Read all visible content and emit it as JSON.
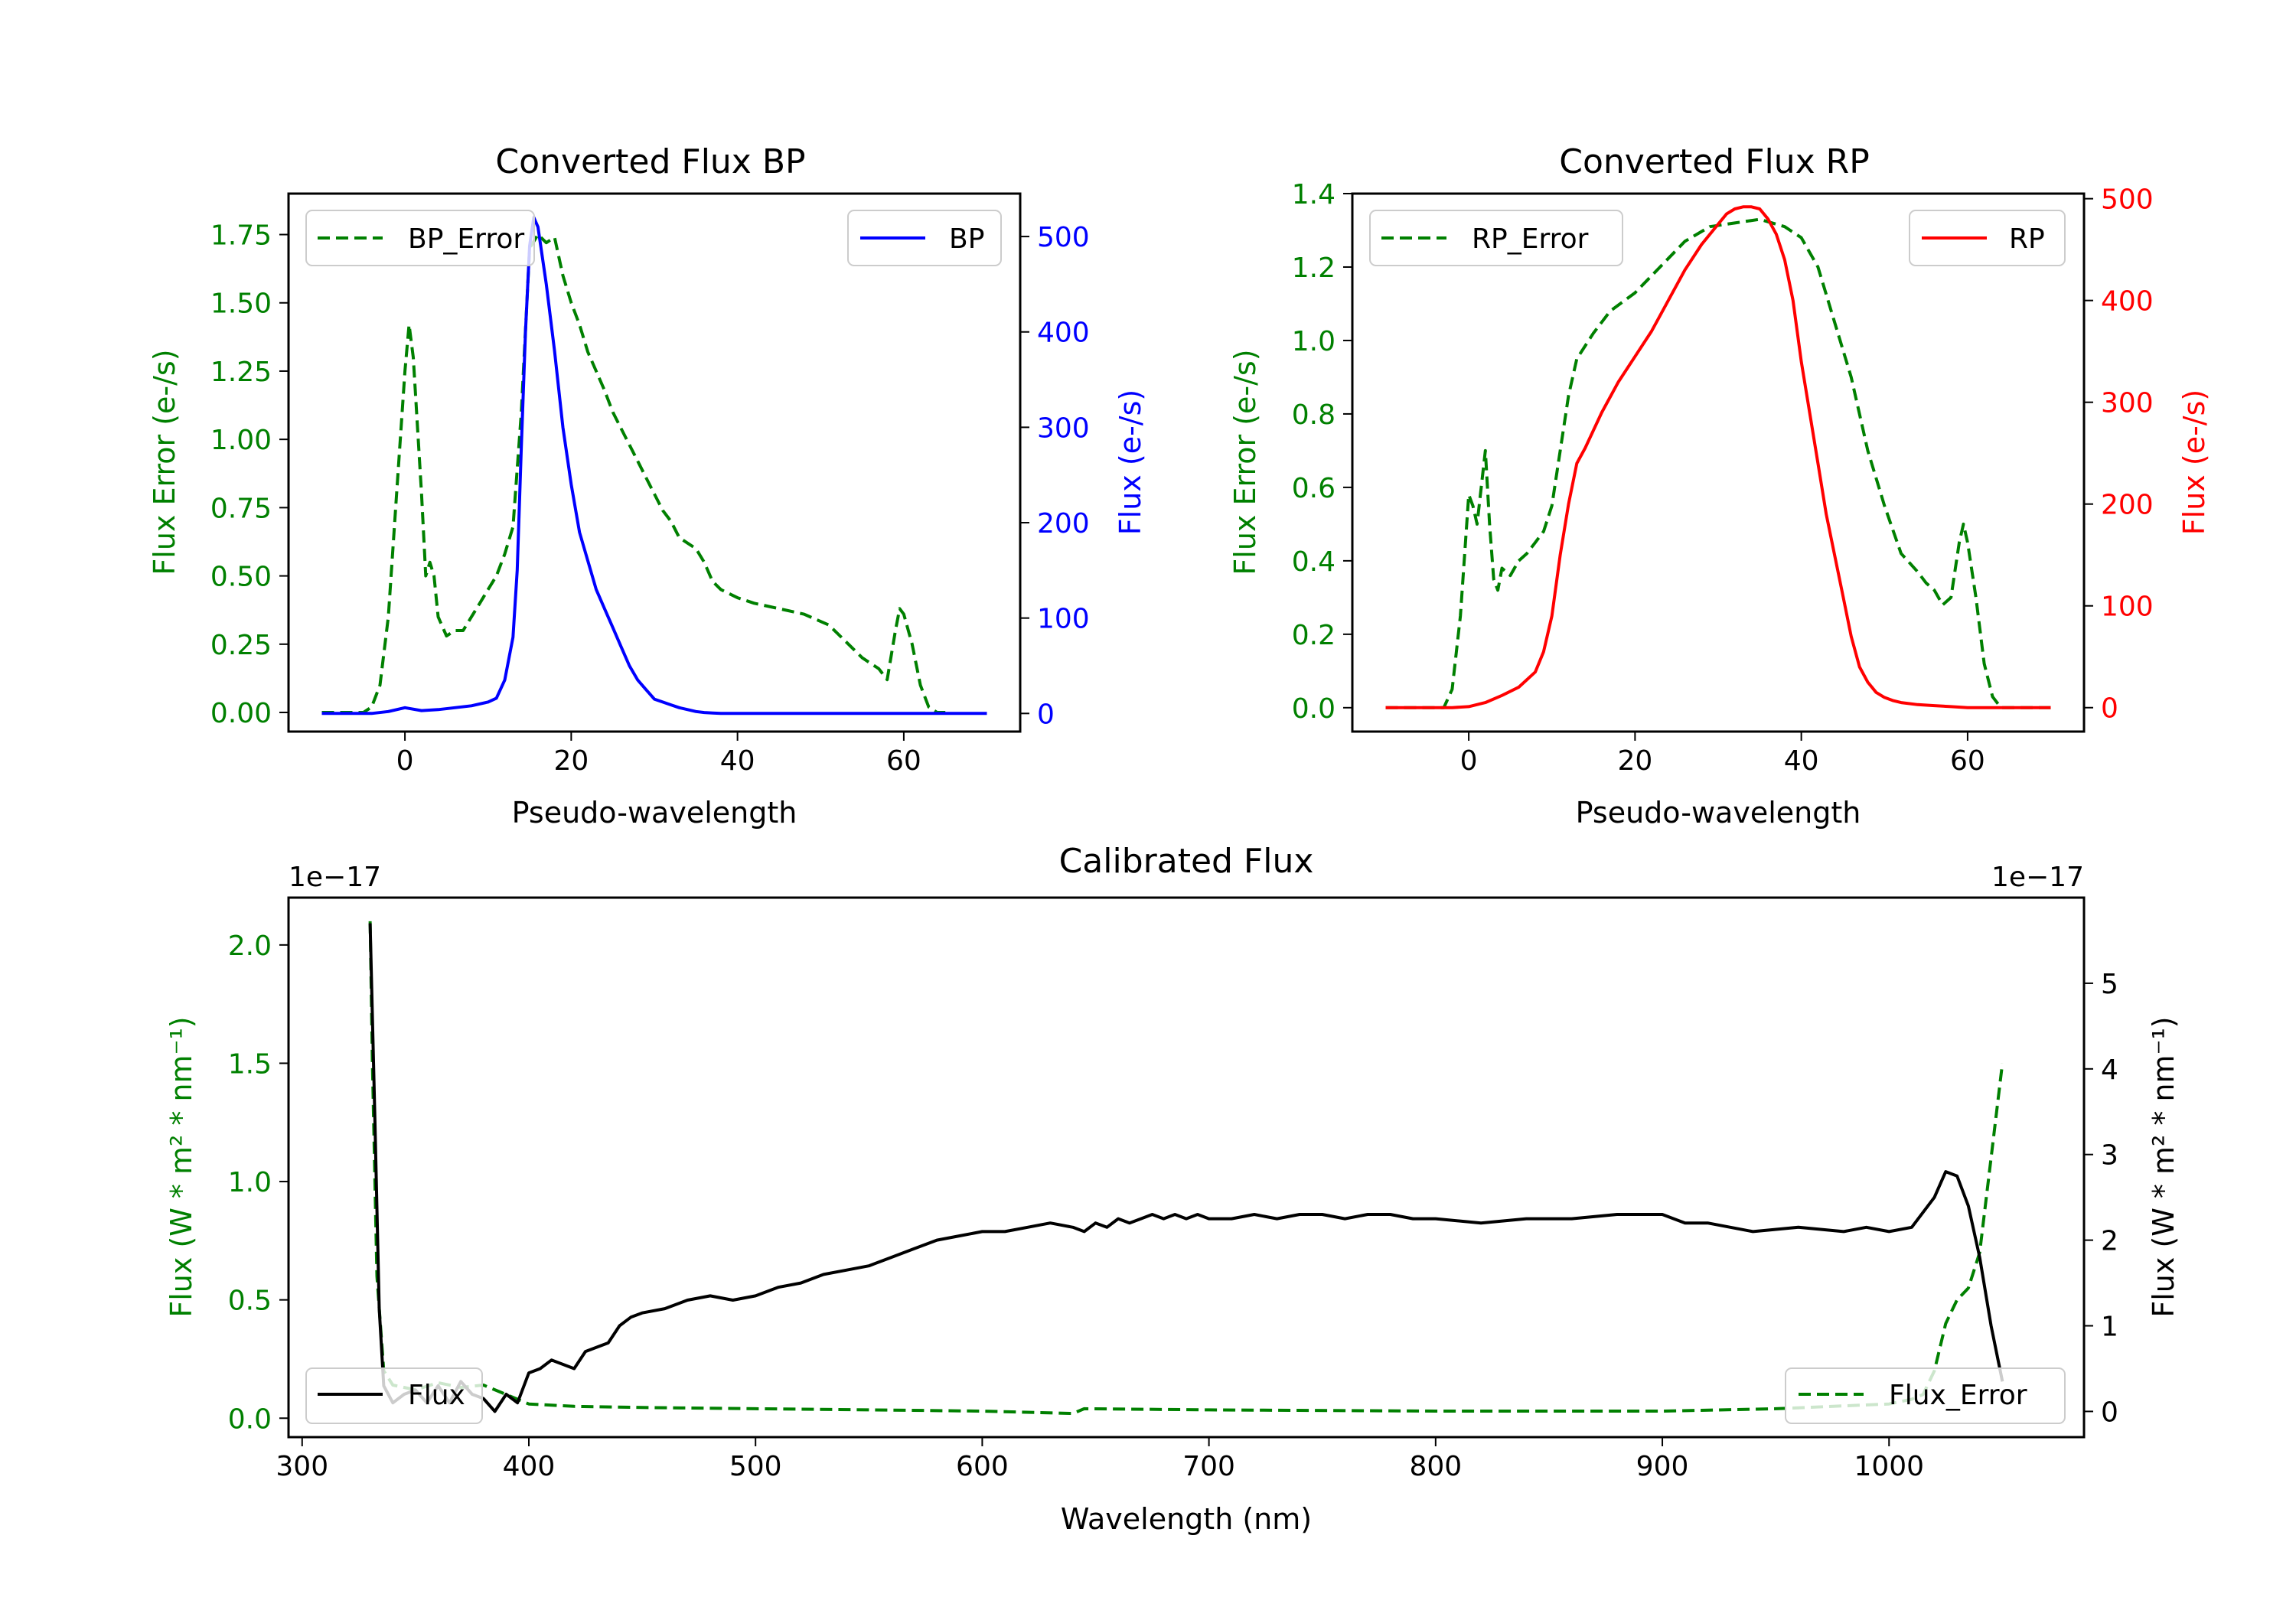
{
  "chart_data": [
    {
      "type": "line",
      "title": "Converted Flux BP",
      "xlabel": "Pseudo-wavelength",
      "ylabel": "Flux Error (e-/s)",
      "ylabel_right": "Flux (e-/s)",
      "xlim": [
        -14,
        74
      ],
      "ylim": [
        -0.07,
        1.9
      ],
      "ylim_right": [
        -19,
        545
      ],
      "xticks": [
        0,
        20,
        40,
        60
      ],
      "yticks": [
        0.0,
        0.25,
        0.5,
        0.75,
        1.0,
        1.25,
        1.5,
        1.75
      ],
      "ytick_labels": [
        "0.00",
        "0.25",
        "0.50",
        "0.75",
        "1.00",
        "1.25",
        "1.50",
        "1.75"
      ],
      "yticks_right": [
        0,
        100,
        200,
        300,
        400,
        500
      ],
      "ytick_labels_right": [
        "0",
        "100",
        "200",
        "300",
        "400",
        "500"
      ],
      "colors": {
        "left_axis": "#008000",
        "right_axis": "#0000ff"
      },
      "legend": [
        {
          "name": "BP_Error",
          "position": "upper-left",
          "style": "dashed",
          "color": "#008000"
        },
        {
          "name": "BP",
          "position": "upper-right",
          "style": "solid",
          "color": "#0000ff"
        }
      ],
      "series": [
        {
          "name": "BP_Error",
          "axis": "left",
          "color": "#008000",
          "style": "dashed",
          "x": [
            -10,
            -5,
            -4,
            -3,
            -2,
            -1,
            0,
            0.5,
            1,
            2,
            2.5,
            3,
            3.5,
            4,
            5,
            6,
            7,
            8,
            9,
            10,
            11,
            12,
            13,
            14,
            15,
            16,
            17,
            18,
            19,
            20,
            21,
            22,
            23,
            24,
            25,
            26,
            27,
            28,
            29,
            30,
            31,
            32,
            33,
            34,
            35,
            36,
            37,
            38,
            40,
            42,
            45,
            48,
            51,
            53,
            55,
            57,
            58,
            59,
            59.5,
            60,
            61,
            62,
            63,
            64,
            65
          ],
          "y": [
            0,
            0,
            0.02,
            0.1,
            0.35,
            0.8,
            1.25,
            1.42,
            1.3,
            0.8,
            0.5,
            0.55,
            0.5,
            0.35,
            0.28,
            0.3,
            0.3,
            0.35,
            0.4,
            0.45,
            0.5,
            0.58,
            0.68,
            1.1,
            1.7,
            1.75,
            1.72,
            1.74,
            1.6,
            1.5,
            1.42,
            1.32,
            1.25,
            1.18,
            1.1,
            1.04,
            0.98,
            0.92,
            0.86,
            0.8,
            0.74,
            0.7,
            0.64,
            0.62,
            0.6,
            0.55,
            0.48,
            0.45,
            0.42,
            0.4,
            0.38,
            0.36,
            0.32,
            0.26,
            0.2,
            0.16,
            0.12,
            0.3,
            0.38,
            0.36,
            0.25,
            0.1,
            0.02,
            0,
            0
          ]
        },
        {
          "name": "BP",
          "axis": "right",
          "color": "#0000ff",
          "style": "solid",
          "x": [
            -10,
            -4,
            -2,
            0,
            2,
            4,
            6,
            8,
            10,
            11,
            12,
            13,
            13.5,
            14,
            14.5,
            15,
            15.5,
            16,
            17,
            18,
            19,
            20,
            21,
            22,
            23,
            24,
            25,
            26,
            27,
            28,
            29,
            30,
            31,
            32,
            33,
            34,
            35,
            36,
            37,
            38,
            40,
            45,
            50,
            55,
            60,
            65,
            70
          ],
          "y": [
            0,
            0,
            2,
            6,
            3,
            4,
            6,
            8,
            12,
            16,
            35,
            80,
            150,
            280,
            400,
            490,
            520,
            510,
            450,
            380,
            300,
            240,
            190,
            160,
            130,
            110,
            90,
            70,
            50,
            35,
            25,
            15,
            12,
            9,
            6,
            4,
            2,
            1,
            0.5,
            0,
            0,
            0,
            0,
            0,
            0,
            0,
            0
          ]
        }
      ]
    },
    {
      "type": "line",
      "title": "Converted Flux RP",
      "xlabel": "Pseudo-wavelength",
      "ylabel": "Flux Error (e-/s)",
      "ylabel_right": "Flux (e-/s)",
      "xlim": [
        -14,
        74
      ],
      "ylim": [
        -0.065,
        1.4
      ],
      "ylim_right": [
        -23.5,
        505
      ],
      "xticks": [
        0,
        20,
        40,
        60
      ],
      "yticks": [
        0.0,
        0.2,
        0.4,
        0.6,
        0.8,
        1.0,
        1.2,
        1.4
      ],
      "ytick_labels": [
        "0.0",
        "0.2",
        "0.4",
        "0.6",
        "0.8",
        "1.0",
        "1.2",
        "1.4"
      ],
      "yticks_right": [
        0,
        100,
        200,
        300,
        400,
        500
      ],
      "ytick_labels_right": [
        "0",
        "100",
        "200",
        "300",
        "400",
        "500"
      ],
      "colors": {
        "left_axis": "#008000",
        "right_axis": "#ff0000"
      },
      "legend": [
        {
          "name": "RP_Error",
          "position": "upper-left",
          "style": "dashed",
          "color": "#008000"
        },
        {
          "name": "RP",
          "position": "upper-right",
          "style": "solid",
          "color": "#ff0000"
        }
      ],
      "series": [
        {
          "name": "RP_Error",
          "axis": "left",
          "color": "#008000",
          "style": "dashed",
          "x": [
            -10,
            -3,
            -2,
            -1,
            0,
            0.5,
            1,
            1.5,
            2,
            2.5,
            3,
            3.5,
            4,
            5,
            6,
            7,
            8,
            9,
            10,
            11,
            12,
            13,
            15,
            17,
            20,
            23,
            26,
            29,
            32,
            35,
            38,
            40,
            42,
            44,
            46,
            48,
            50,
            52,
            54,
            55,
            56,
            57,
            58,
            59,
            59.5,
            60,
            61,
            62,
            63,
            64,
            65,
            70
          ],
          "y": [
            0,
            0,
            0.05,
            0.25,
            0.58,
            0.55,
            0.5,
            0.6,
            0.7,
            0.5,
            0.35,
            0.32,
            0.38,
            0.36,
            0.4,
            0.42,
            0.45,
            0.48,
            0.55,
            0.7,
            0.85,
            0.95,
            1.02,
            1.08,
            1.13,
            1.2,
            1.27,
            1.31,
            1.32,
            1.33,
            1.31,
            1.28,
            1.2,
            1.05,
            0.9,
            0.7,
            0.55,
            0.42,
            0.37,
            0.34,
            0.32,
            0.28,
            0.3,
            0.45,
            0.5,
            0.45,
            0.3,
            0.12,
            0.03,
            0,
            0,
            0
          ]
        },
        {
          "name": "RP",
          "axis": "right",
          "color": "#ff0000",
          "style": "solid",
          "x": [
            -10,
            -2,
            0,
            2,
            4,
            6,
            8,
            9,
            10,
            11,
            12,
            13,
            14,
            16,
            18,
            20,
            22,
            24,
            26,
            28,
            30,
            31,
            32,
            33,
            34,
            35,
            36,
            37,
            38,
            39,
            40,
            41,
            42,
            43,
            44,
            45,
            46,
            47,
            48,
            49,
            50,
            51,
            52,
            54,
            56,
            58,
            60,
            62,
            70
          ],
          "y": [
            0,
            0,
            1,
            5,
            12,
            20,
            35,
            55,
            90,
            150,
            200,
            240,
            255,
            290,
            320,
            345,
            370,
            400,
            430,
            455,
            475,
            485,
            490,
            492,
            492,
            490,
            480,
            465,
            440,
            400,
            340,
            290,
            240,
            190,
            150,
            110,
            70,
            40,
            25,
            15,
            10,
            7,
            5,
            3,
            2,
            1,
            0,
            0,
            0
          ]
        }
      ]
    },
    {
      "type": "line",
      "title": "Calibrated Flux",
      "xlabel": "Wavelength (nm)",
      "ylabel": "Flux (W * m² * nm⁻¹)",
      "ylabel_right": "Flux (W * m² * nm⁻¹)",
      "offset_label_left": "1e−17",
      "offset_label_right": "1e−17",
      "xlim": [
        294,
        1086
      ],
      "ylim": [
        -0.08,
        2.2
      ],
      "ylim_right": [
        -0.3,
        6.0
      ],
      "xticks": [
        300,
        400,
        500,
        600,
        700,
        800,
        900,
        1000
      ],
      "yticks": [
        0.0,
        0.5,
        1.0,
        1.5,
        2.0
      ],
      "ytick_labels": [
        "0.0",
        "0.5",
        "1.0",
        "1.5",
        "2.0"
      ],
      "yticks_right": [
        0,
        1,
        2,
        3,
        4,
        5
      ],
      "ytick_labels_right": [
        "0",
        "1",
        "2",
        "3",
        "4",
        "5"
      ],
      "colors": {
        "left_axis": "#008000",
        "right_axis": "#000000"
      },
      "legend": [
        {
          "name": "Flux",
          "position": "lower-left",
          "style": "solid",
          "color": "#000000"
        },
        {
          "name": "Flux_Error",
          "position": "lower-right",
          "style": "dashed",
          "color": "#008000"
        }
      ],
      "series": [
        {
          "name": "Flux_Error",
          "axis": "left",
          "color": "#008000",
          "style": "dashed",
          "x": [
            330,
            331,
            333,
            336,
            340,
            350,
            360,
            370,
            380,
            390,
            400,
            420,
            450,
            500,
            550,
            600,
            640,
            645,
            700,
            800,
            900,
            950,
            1000,
            1010,
            1015,
            1020,
            1025,
            1030,
            1035,
            1040,
            1045,
            1050
          ],
          "y": [
            2.1,
            1.5,
            0.6,
            0.2,
            0.14,
            0.12,
            0.15,
            0.13,
            0.14,
            0.1,
            0.06,
            0.05,
            0.045,
            0.04,
            0.035,
            0.03,
            0.02,
            0.04,
            0.035,
            0.03,
            0.03,
            0.04,
            0.06,
            0.08,
            0.1,
            0.2,
            0.4,
            0.5,
            0.55,
            0.7,
            1.1,
            1.5
          ]
        },
        {
          "name": "Flux",
          "axis": "right",
          "color": "#000000",
          "style": "solid",
          "x": [
            330,
            332,
            334,
            336,
            340,
            345,
            350,
            355,
            360,
            365,
            370,
            375,
            380,
            385,
            390,
            395,
            400,
            405,
            410,
            415,
            420,
            425,
            430,
            435,
            440,
            445,
            450,
            460,
            470,
            480,
            490,
            500,
            510,
            520,
            530,
            540,
            550,
            560,
            570,
            580,
            590,
            600,
            610,
            620,
            630,
            640,
            645,
            650,
            655,
            660,
            665,
            670,
            675,
            680,
            685,
            690,
            695,
            700,
            710,
            720,
            730,
            740,
            750,
            760,
            770,
            780,
            790,
            800,
            820,
            840,
            860,
            880,
            900,
            910,
            920,
            940,
            960,
            980,
            990,
            1000,
            1010,
            1020,
            1025,
            1030,
            1035,
            1040,
            1045,
            1050
          ],
          "y": [
            5.7,
            3.5,
            1.2,
            0.3,
            0.1,
            0.2,
            0.25,
            0.1,
            0.3,
            0.1,
            0.35,
            0.2,
            0.15,
            0.0,
            0.2,
            0.1,
            0.45,
            0.5,
            0.6,
            0.55,
            0.5,
            0.7,
            0.75,
            0.8,
            1.0,
            1.1,
            1.15,
            1.2,
            1.3,
            1.35,
            1.3,
            1.35,
            1.45,
            1.5,
            1.6,
            1.65,
            1.7,
            1.8,
            1.9,
            2.0,
            2.05,
            2.1,
            2.1,
            2.15,
            2.2,
            2.15,
            2.1,
            2.2,
            2.15,
            2.25,
            2.2,
            2.25,
            2.3,
            2.25,
            2.3,
            2.25,
            2.3,
            2.25,
            2.25,
            2.3,
            2.25,
            2.3,
            2.3,
            2.25,
            2.3,
            2.3,
            2.25,
            2.25,
            2.2,
            2.25,
            2.25,
            2.3,
            2.3,
            2.2,
            2.2,
            2.1,
            2.15,
            2.1,
            2.15,
            2.1,
            2.15,
            2.5,
            2.8,
            2.75,
            2.4,
            1.8,
            1.0,
            0.35
          ]
        }
      ]
    }
  ]
}
